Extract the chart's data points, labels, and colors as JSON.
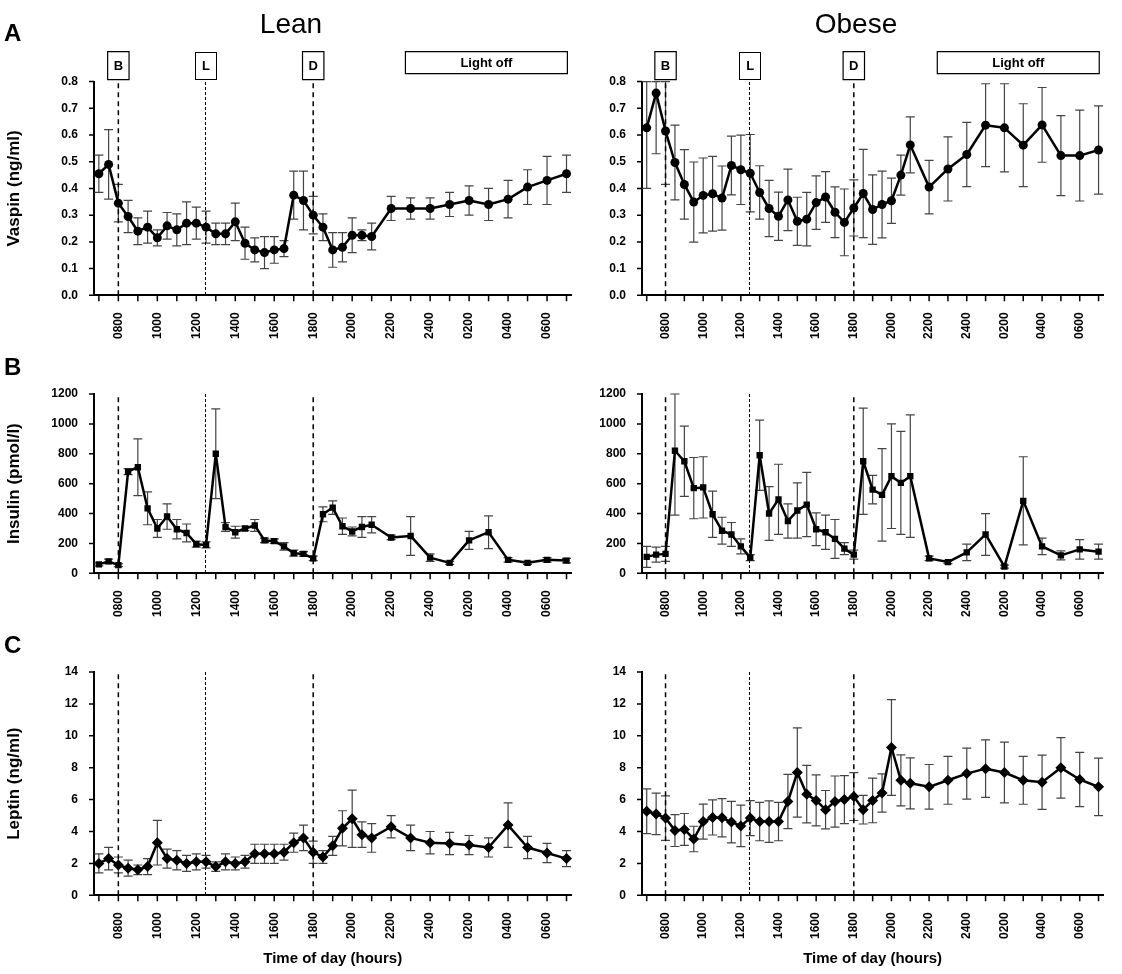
{
  "chart_data": [
    {
      "type": "line",
      "title": "Lean",
      "ylabel": "Vaspin (ng/ml)",
      "color": "#000000",
      "marker": "circle",
      "line_style": "solid",
      "grid": false,
      "annotations": [
        "A",
        "Light off"
      ],
      "ref_lines": [
        {
          "axis": "x",
          "value": "0800",
          "label": "B",
          "line_style": "dashed"
        },
        {
          "axis": "x",
          "label": "L",
          "line_style": "dashed"
        },
        {
          "axis": "x",
          "value": "1800",
          "label": "D",
          "line_style": "dashed"
        }
      ],
      "categories": [
        null,
        null,
        "0800",
        null,
        null,
        null,
        "1000",
        null,
        null,
        null,
        "1200",
        null,
        null,
        null,
        "1400",
        null,
        null,
        null,
        "1600",
        null,
        null,
        null,
        "1800",
        null,
        null,
        null,
        "2000",
        null,
        null,
        null,
        "2200",
        null,
        null,
        null,
        "2400",
        null,
        null,
        null,
        "0200",
        null,
        null,
        null,
        "0400",
        null,
        null,
        null,
        "0600",
        null,
        null
      ],
      "ylim": [
        0,
        0.8
      ],
      "yticks": [
        {
          "value": 0,
          "label": "0.0"
        },
        0.1,
        0.2,
        0.3,
        0.4,
        0.5,
        0.6,
        0.7,
        0.8
      ],
      "values": [
        0.455,
        0.49,
        0.345,
        0.295,
        0.24,
        0.255,
        0.215,
        0.26,
        0.245,
        0.27,
        0.27,
        0.255,
        0.23,
        0.23,
        0.275,
        0.195,
        0.17,
        0.16,
        0.17,
        0.175,
        0.375,
        0.355,
        0.3,
        0.255,
        0.17,
        0.18,
        0.225,
        0.225,
        0.22,
        null,
        0.325,
        null,
        0.325,
        null,
        0.325,
        null,
        0.34,
        null,
        0.355,
        null,
        0.34,
        null,
        0.36,
        null,
        0.405,
        null,
        0.43,
        null,
        0.455
      ],
      "errors": [
        0.07,
        0.13,
        0.07,
        0.06,
        0.05,
        0.06,
        0.03,
        0.05,
        0.06,
        0.08,
        0.06,
        0.06,
        0.04,
        0.04,
        0.07,
        0.06,
        0.045,
        0.06,
        0.05,
        0.03,
        0.09,
        0.11,
        0.07,
        0.05,
        0.065,
        0.055,
        0.065,
        0.02,
        0.05,
        null,
        0.045,
        null,
        0.04,
        null,
        0.04,
        null,
        0.045,
        null,
        0.055,
        null,
        0.06,
        null,
        0.07,
        null,
        0.065,
        null,
        0.09,
        null,
        0.07
      ]
    },
    {
      "type": "line",
      "title": "Obese",
      "color": "#000000",
      "marker": "circle",
      "line_style": "solid",
      "grid": false,
      "annotations": [
        "Light off"
      ],
      "ref_lines": [
        {
          "axis": "x",
          "value": "0800",
          "label": "B",
          "line_style": "dashed"
        },
        {
          "axis": "x",
          "label": "L",
          "line_style": "dashed"
        },
        {
          "axis": "x",
          "value": "1800",
          "label": "D",
          "line_style": "dashed"
        }
      ],
      "categories": [
        null,
        null,
        "0800",
        null,
        null,
        null,
        "1000",
        null,
        null,
        null,
        "1200",
        null,
        null,
        null,
        "1400",
        null,
        null,
        null,
        "1600",
        null,
        null,
        null,
        "1800",
        null,
        null,
        null,
        "2000",
        null,
        null,
        null,
        "2200",
        null,
        null,
        null,
        "2400",
        null,
        null,
        null,
        "0200",
        null,
        null,
        null,
        "0400",
        null,
        null,
        null,
        "0600",
        null,
        null
      ],
      "ylim": [
        0,
        0.8
      ],
      "yticks": [
        {
          "value": 0,
          "label": "0.0"
        },
        0.1,
        0.2,
        0.3,
        0.4,
        0.5,
        0.6,
        0.7,
        0.8
      ],
      "values": [
        0.627,
        0.757,
        0.615,
        0.497,
        0.415,
        0.349,
        0.374,
        0.38,
        0.364,
        0.486,
        0.47,
        0.457,
        0.385,
        0.325,
        0.296,
        0.357,
        0.277,
        0.285,
        0.347,
        0.368,
        0.311,
        0.273,
        0.327,
        0.381,
        0.321,
        0.34,
        0.354,
        0.45,
        0.563,
        null,
        0.405,
        null,
        0.473,
        null,
        0.527,
        null,
        0.637,
        null,
        0.627,
        null,
        0.562,
        null,
        0.638,
        null,
        0.523,
        null,
        0.523,
        null,
        0.544
      ],
      "errors": [
        [
          0.4,
          0.8
        ],
        [
          0.53,
          0.8
        ],
        [
          0.415,
          0.8
        ],
        0.14,
        0.13,
        0.15,
        0.14,
        0.14,
        0.12,
        0.11,
        0.13,
        0.145,
        0.1,
        0.105,
        0.09,
        0.115,
        0.09,
        0.1,
        0.1,
        0.095,
        0.095,
        0.125,
        0.105,
        0.165,
        0.13,
        0.125,
        0.085,
        0.075,
        0.105,
        null,
        0.1,
        null,
        0.12,
        null,
        0.12,
        null,
        0.155,
        null,
        0.165,
        null,
        0.155,
        null,
        0.14,
        null,
        0.15,
        null,
        0.17,
        null,
        0.165
      ]
    },
    {
      "type": "line",
      "ylabel": "Insulin (pmol/l)",
      "color": "#000000",
      "marker": "square",
      "line_style": "solid",
      "grid": false,
      "annotations": [
        "B"
      ],
      "ref_lines": [
        {
          "axis": "x",
          "value": "0800",
          "line_style": "dashed"
        },
        {
          "axis": "x",
          "value": "1800",
          "line_style": "dashed"
        }
      ],
      "categories": [
        null,
        null,
        "0800",
        null,
        null,
        null,
        "1000",
        null,
        null,
        null,
        "1200",
        null,
        null,
        null,
        "1400",
        null,
        null,
        null,
        "1600",
        null,
        null,
        null,
        "1800",
        null,
        null,
        null,
        "2000",
        null,
        null,
        null,
        "2200",
        null,
        null,
        null,
        "2400",
        null,
        null,
        null,
        "0200",
        null,
        null,
        null,
        "0400",
        null,
        null,
        null,
        "0600",
        null,
        null
      ],
      "ylim": [
        0,
        1200
      ],
      "yticks": [
        0,
        200,
        400,
        600,
        800,
        1000,
        1200
      ],
      "values": [
        60,
        80,
        55,
        680,
        710,
        435,
        300,
        380,
        295,
        270,
        195,
        190,
        800,
        310,
        275,
        300,
        320,
        220,
        215,
        180,
        135,
        130,
        100,
        395,
        440,
        315,
        280,
        310,
        325,
        null,
        240,
        null,
        250,
        null,
        105,
        null,
        70,
        null,
        220,
        null,
        275,
        null,
        90,
        null,
        70,
        null,
        90,
        null,
        85
      ],
      "errors": [
        10,
        15,
        10,
        20,
        190,
        110,
        60,
        85,
        65,
        60,
        20,
        20,
        300,
        30,
        40,
        15,
        40,
        15,
        15,
        25,
        20,
        15,
        15,
        50,
        45,
        55,
        30,
        70,
        55,
        null,
        15,
        null,
        130,
        null,
        25,
        null,
        10,
        null,
        60,
        null,
        110,
        null,
        15,
        null,
        10,
        null,
        15,
        null,
        15
      ]
    },
    {
      "type": "line",
      "color": "#000000",
      "marker": "square",
      "line_style": "solid",
      "grid": false,
      "ref_lines": [
        {
          "axis": "x",
          "value": "0800",
          "line_style": "dashed"
        },
        {
          "axis": "x",
          "value": "1800",
          "line_style": "dashed"
        }
      ],
      "categories": [
        null,
        null,
        "0800",
        null,
        null,
        null,
        "1000",
        null,
        null,
        null,
        "1200",
        null,
        null,
        null,
        "1400",
        null,
        null,
        null,
        "1600",
        null,
        null,
        null,
        "1800",
        null,
        null,
        null,
        "2000",
        null,
        null,
        null,
        "2200",
        null,
        null,
        null,
        "2400",
        null,
        null,
        null,
        "0200",
        null,
        null,
        null,
        "0400",
        null,
        null,
        null,
        "0600",
        null,
        null
      ],
      "ylim": [
        0,
        1200
      ],
      "yticks": [
        0,
        200,
        400,
        600,
        800,
        1000,
        1200
      ],
      "values": [
        110,
        125,
        130,
        820,
        750,
        570,
        575,
        395,
        285,
        260,
        180,
        105,
        790,
        400,
        495,
        350,
        420,
        460,
        295,
        275,
        230,
        165,
        125,
        750,
        560,
        525,
        650,
        605,
        650,
        null,
        100,
        null,
        75,
        null,
        140,
        null,
        260,
        null,
        45,
        null,
        485,
        null,
        180,
        null,
        120,
        null,
        160,
        null,
        145
      ],
      "errors": [
        70,
        50,
        50,
        [
          390,
          1200
        ],
        235,
        205,
        205,
        155,
        90,
        80,
        50,
        20,
        235,
        180,
        235,
        115,
        185,
        215,
        110,
        115,
        130,
        40,
        30,
        355,
        95,
        310,
        350,
        345,
        410,
        null,
        15,
        null,
        10,
        null,
        55,
        null,
        140,
        null,
        10,
        null,
        295,
        null,
        55,
        null,
        30,
        null,
        65,
        null,
        50
      ]
    },
    {
      "type": "line",
      "ylabel": "Leptin (ng/ml)",
      "xlabel": "Time of day (hours)",
      "color": "#000000",
      "marker": "diamond",
      "line_style": "solid",
      "grid": false,
      "annotations": [
        "C"
      ],
      "ref_lines": [
        {
          "axis": "x",
          "value": "0800",
          "line_style": "dashed"
        },
        {
          "axis": "x",
          "value": "1800",
          "line_style": "dashed"
        }
      ],
      "categories": [
        null,
        null,
        "0800",
        null,
        null,
        null,
        "1000",
        null,
        null,
        null,
        "1200",
        null,
        null,
        null,
        "1400",
        null,
        null,
        null,
        "1600",
        null,
        null,
        null,
        "1800",
        null,
        null,
        null,
        "2000",
        null,
        null,
        null,
        "2200",
        null,
        null,
        null,
        "2400",
        null,
        null,
        null,
        "0200",
        null,
        null,
        null,
        "0400",
        null,
        null,
        null,
        "0600",
        null,
        null
      ],
      "ylim": [
        0,
        14
      ],
      "yticks": [
        0,
        2,
        4,
        6,
        8,
        10,
        12,
        14
      ],
      "values": [
        2.0,
        2.3,
        1.9,
        1.7,
        1.6,
        1.8,
        3.3,
        2.3,
        2.2,
        2.0,
        2.1,
        2.1,
        1.8,
        2.1,
        2.0,
        2.1,
        2.6,
        2.6,
        2.6,
        2.7,
        3.3,
        3.6,
        2.7,
        2.4,
        3.1,
        4.2,
        4.8,
        3.8,
        3.6,
        null,
        4.3,
        null,
        3.6,
        null,
        3.3,
        null,
        3.25,
        null,
        3.15,
        null,
        3.0,
        null,
        4.4,
        null,
        3.0,
        null,
        2.65,
        null,
        2.3
      ],
      "errors": [
        0.6,
        0.7,
        0.5,
        0.5,
        0.3,
        0.5,
        1.4,
        0.6,
        0.6,
        0.5,
        0.5,
        0.4,
        0.3,
        0.5,
        0.4,
        0.4,
        0.6,
        0.6,
        0.6,
        0.5,
        0.6,
        0.8,
        0.7,
        0.4,
        0.6,
        1.1,
        1.8,
        0.8,
        0.9,
        null,
        0.7,
        null,
        0.8,
        null,
        0.7,
        null,
        0.7,
        null,
        0.6,
        null,
        0.6,
        null,
        1.4,
        null,
        0.7,
        null,
        0.6,
        null,
        0.5
      ]
    },
    {
      "type": "line",
      "xlabel": "Time of day (hours)",
      "color": "#000000",
      "marker": "diamond",
      "line_style": "solid",
      "grid": false,
      "ref_lines": [
        {
          "axis": "x",
          "value": "0800",
          "line_style": "dashed"
        },
        {
          "axis": "x",
          "value": "1800",
          "line_style": "dashed"
        }
      ],
      "categories": [
        null,
        null,
        "0800",
        null,
        null,
        null,
        "1000",
        null,
        null,
        null,
        "1200",
        null,
        null,
        null,
        "1400",
        null,
        null,
        null,
        "1600",
        null,
        null,
        null,
        "1800",
        null,
        null,
        null,
        "2000",
        null,
        null,
        null,
        "2200",
        null,
        null,
        null,
        "2400",
        null,
        null,
        null,
        "0200",
        null,
        null,
        null,
        "0400",
        null,
        null,
        null,
        "0600",
        null,
        null
      ],
      "ylim": [
        0,
        14
      ],
      "yticks": [
        0,
        2,
        4,
        6,
        8,
        10,
        12,
        14
      ],
      "values": [
        5.27,
        5.1,
        4.84,
        4.06,
        4.13,
        3.53,
        4.62,
        4.88,
        4.86,
        4.59,
        4.35,
        4.84,
        4.62,
        4.62,
        4.62,
        5.88,
        7.7,
        6.34,
        5.95,
        5.37,
        5.88,
        6.0,
        6.19,
        5.37,
        5.95,
        6.41,
        9.27,
        7.21,
        7.02,
        null,
        6.8,
        null,
        7.21,
        null,
        7.63,
        null,
        7.94,
        null,
        7.7,
        null,
        7.21,
        null,
        7.09,
        null,
        7.99,
        null,
        7.26,
        null,
        6.8
      ],
      "errors": [
        1.4,
        1.3,
        1.4,
        1.0,
        1.0,
        0.8,
        1.1,
        1.1,
        1.2,
        1.3,
        1.3,
        1.1,
        1.2,
        1.3,
        1.2,
        1.7,
        2.8,
        1.8,
        1.6,
        1.2,
        1.6,
        1.5,
        1.5,
        0.9,
        1.4,
        1.2,
        3.0,
        1.6,
        1.6,
        null,
        1.4,
        null,
        1.5,
        null,
        1.6,
        null,
        1.8,
        null,
        1.9,
        null,
        1.5,
        null,
        1.7,
        null,
        1.9,
        null,
        1.7,
        null,
        1.8
      ]
    }
  ]
}
